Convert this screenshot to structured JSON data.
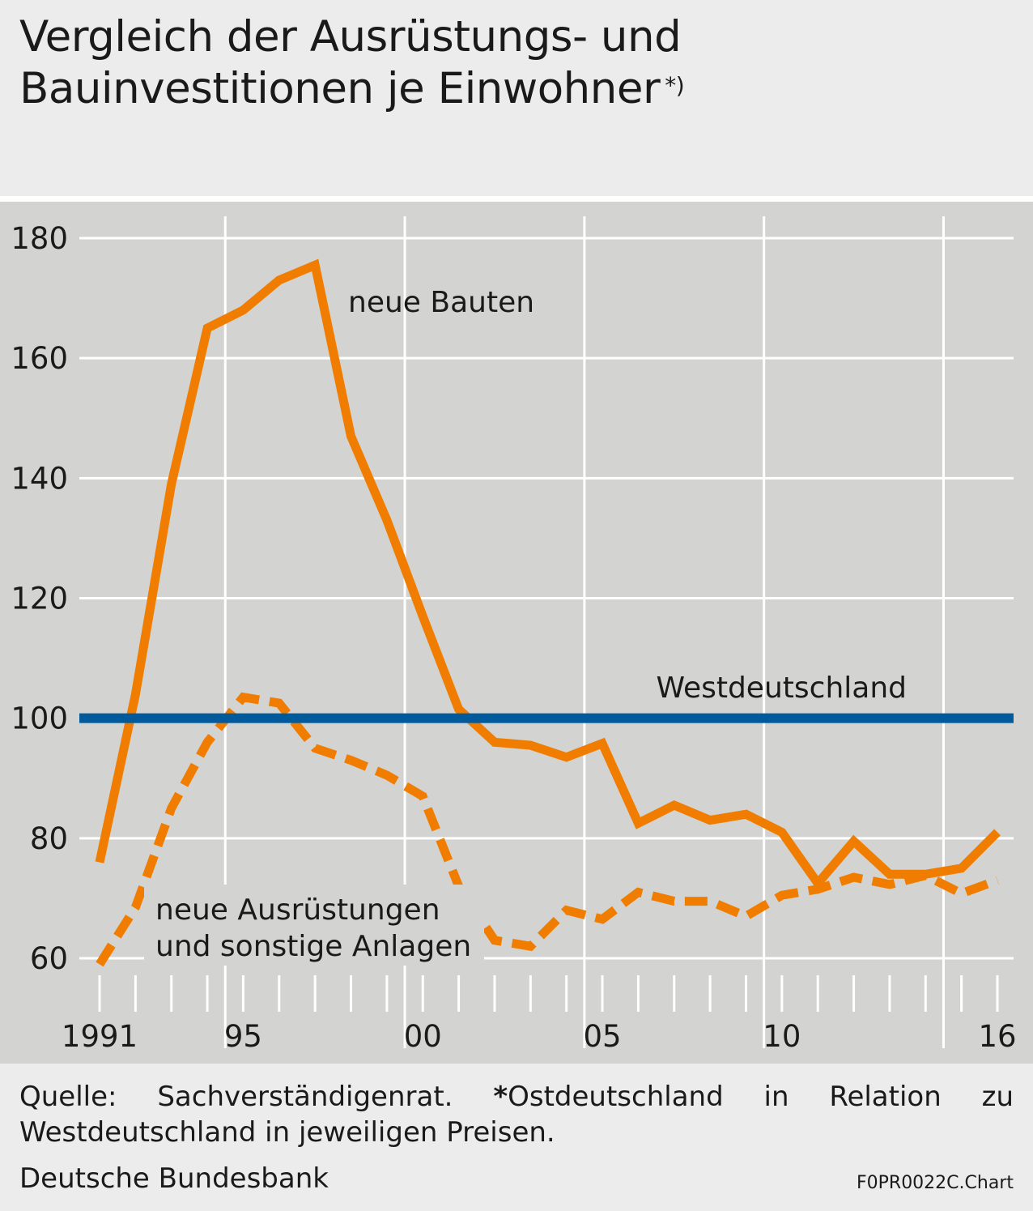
{
  "title": {
    "line1": "Vergleich der Ausrüstungs- und",
    "line2": "Bauinvestitionen je Einwohner",
    "note_marker": "*)"
  },
  "footer": {
    "source": "Quelle: Sachverständigenrat.",
    "footnote_star": "*",
    "footnote_text": "Ostdeutschland in Relation zu Westdeutschland in jeweiligen Preisen.",
    "publisher": "Deutsche Bundesbank",
    "chart_code": "F0PR0022C.Chart"
  },
  "colors": {
    "orange": "#f07d00",
    "blue": "#005a9b",
    "plot_bg": "#d3d3d1",
    "grid": "#ffffff"
  },
  "chart_data": {
    "type": "line",
    "x": [
      1991,
      1992,
      1993,
      1994,
      1995,
      1996,
      1997,
      1998,
      1999,
      2000,
      2001,
      2002,
      2003,
      2004,
      2005,
      2006,
      2007,
      2008,
      2009,
      2010,
      2011,
      2012,
      2013,
      2014,
      2015,
      2016
    ],
    "xlim": [
      1991,
      2016
    ],
    "ylim": [
      60,
      180
    ],
    "y_ticks": [
      60,
      80,
      100,
      120,
      140,
      160,
      180
    ],
    "x_tick_labels": [
      {
        "x": 1991,
        "label": "1991"
      },
      {
        "x": 1995,
        "label": "95"
      },
      {
        "x": 2000,
        "label": "00"
      },
      {
        "x": 2005,
        "label": "05"
      },
      {
        "x": 2010,
        "label": "10"
      },
      {
        "x": 2016,
        "label": "16"
      }
    ],
    "x_major_gridlines": [
      1994.5,
      1999.5,
      2004.5,
      2009.5,
      2014.5
    ],
    "grid": true,
    "series": [
      {
        "name": "neue Bauten",
        "style": "solid",
        "color": "#f07d00",
        "values": [
          76,
          104,
          139,
          165,
          168,
          173,
          175.5,
          147,
          133,
          117,
          101.5,
          96,
          95.5,
          93.5,
          95.8,
          82.5,
          85.5,
          83,
          84,
          81,
          72.5,
          79.5,
          74,
          74,
          75,
          81
        ]
      },
      {
        "name": "neue Ausrüstungen und sonstige Anlagen",
        "label_lines": [
          "neue Ausrüstungen",
          "und sonstige Anlagen"
        ],
        "style": "dashed",
        "color": "#f07d00",
        "values": [
          59,
          68.5,
          85,
          96,
          103.5,
          102.5,
          95,
          93,
          90.5,
          87,
          72,
          63,
          62,
          68,
          66.5,
          71,
          69.5,
          69.5,
          67,
          70.5,
          71.5,
          73.5,
          72.3,
          73.8,
          70.8,
          73
        ]
      },
      {
        "name": "Westdeutschland",
        "style": "solid",
        "color": "#005a9b",
        "values": [
          100,
          100,
          100,
          100,
          100,
          100,
          100,
          100,
          100,
          100,
          100,
          100,
          100,
          100,
          100,
          100,
          100,
          100,
          100,
          100,
          100,
          100,
          100,
          100,
          100,
          100
        ]
      }
    ]
  }
}
